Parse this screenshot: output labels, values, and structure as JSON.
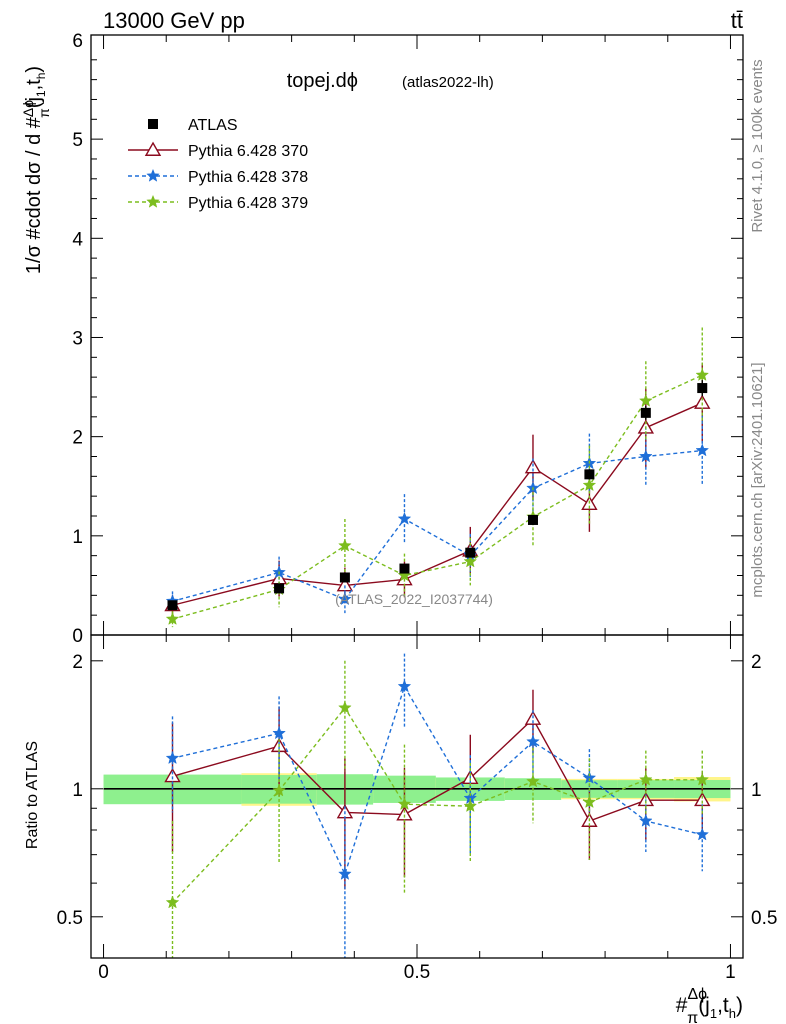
{
  "header": {
    "left": "13000 GeV pp",
    "right": "tt̄"
  },
  "side_labels": {
    "rivet": "Rivet 4.1.0, ≥ 100k events",
    "mcplots": "mcplots.cern.ch [arXiv:2401.10621]"
  },
  "chart_data": {
    "type": "scatter",
    "title": "topej.dϕ",
    "subtitle": "(atlas2022-lh)",
    "watermark": "(ATLAS_2022_I2037744)",
    "xlabel": "#Δϕ/π(j1,th)",
    "ylabel": "1/σ #cdot dσ / d #Δϕ/π(j1,th)",
    "ratio_ylabel": "Ratio to ATLAS",
    "xlim": [
      -0.02,
      1.02
    ],
    "ylim": [
      0,
      6.05
    ],
    "ratio_ylim": [
      0.4,
      2.3
    ],
    "x_ticks": [
      "0",
      "0.5",
      "1"
    ],
    "y_ticks": [
      "0",
      "1",
      "2",
      "3",
      "4",
      "5",
      "6"
    ],
    "ratio_ticks": [
      "0.5",
      "1",
      "2"
    ],
    "bins": [
      0.0,
      0.22,
      0.34,
      0.43,
      0.53,
      0.64,
      0.73,
      0.82,
      0.91,
      1.0
    ],
    "x": [
      0.11,
      0.28,
      0.385,
      0.48,
      0.585,
      0.685,
      0.775,
      0.865,
      0.955
    ],
    "data": {
      "name": "ATLAS",
      "values": [
        0.3,
        0.47,
        0.58,
        0.67,
        0.83,
        1.16,
        1.62,
        2.24,
        2.49
      ],
      "errors": [
        0.02,
        0.03,
        0.04,
        0.04,
        0.04,
        0.05,
        0.05,
        0.07,
        0.08
      ],
      "syst_frac": [
        0.06,
        0.08,
        0.07,
        0.06,
        0.05,
        0.04,
        0.05,
        0.05,
        0.06
      ]
    },
    "series": [
      {
        "name": "Pythia 6.428 370",
        "color": "#8b0a1e",
        "style": "solid",
        "marker": "triangle",
        "values": [
          0.3,
          0.57,
          0.5,
          0.56,
          0.85,
          1.69,
          1.32,
          2.09,
          2.34
        ],
        "errors": [
          0.1,
          0.18,
          0.18,
          0.18,
          0.24,
          0.33,
          0.28,
          0.4,
          0.4
        ]
      },
      {
        "name": "Pythia 6.428 378",
        "color": "#1f6fd8",
        "style": "dashed",
        "marker": "star",
        "values": [
          0.34,
          0.63,
          0.36,
          1.17,
          0.8,
          1.48,
          1.73,
          1.8,
          1.86
        ],
        "errors": [
          0.1,
          0.16,
          0.14,
          0.25,
          0.22,
          0.3,
          0.3,
          0.3,
          0.35
        ]
      },
      {
        "name": "Pythia 6.428 379",
        "color": "#7cbd1e",
        "style": "dashed",
        "marker": "star",
        "values": [
          0.16,
          0.46,
          0.9,
          0.6,
          0.74,
          1.19,
          1.51,
          2.36,
          2.62
        ],
        "errors": [
          0.08,
          0.18,
          0.27,
          0.22,
          0.24,
          0.3,
          0.4,
          0.4,
          0.48
        ]
      }
    ],
    "ratio": [
      {
        "name": "Pythia 6.428 370",
        "values": [
          1.07,
          1.26,
          0.88,
          0.87,
          1.06,
          1.46,
          0.84,
          0.94,
          0.94
        ],
        "errors": [
          0.36,
          0.3,
          0.3,
          0.25,
          0.28,
          0.25,
          0.16,
          0.18,
          0.16
        ]
      },
      {
        "name": "Pythia 6.428 378",
        "values": [
          1.18,
          1.35,
          0.63,
          1.74,
          0.95,
          1.29,
          1.06,
          0.84,
          0.78
        ],
        "errors": [
          0.3,
          0.3,
          0.28,
          0.34,
          0.25,
          0.24,
          0.18,
          0.13,
          0.14
        ]
      },
      {
        "name": "Pythia 6.428 379",
        "values": [
          0.54,
          0.99,
          1.55,
          0.92,
          0.91,
          1.04,
          0.93,
          1.05,
          1.05
        ],
        "errors": [
          0.3,
          0.32,
          0.45,
          0.35,
          0.24,
          0.21,
          0.25,
          0.18,
          0.18
        ]
      }
    ]
  }
}
